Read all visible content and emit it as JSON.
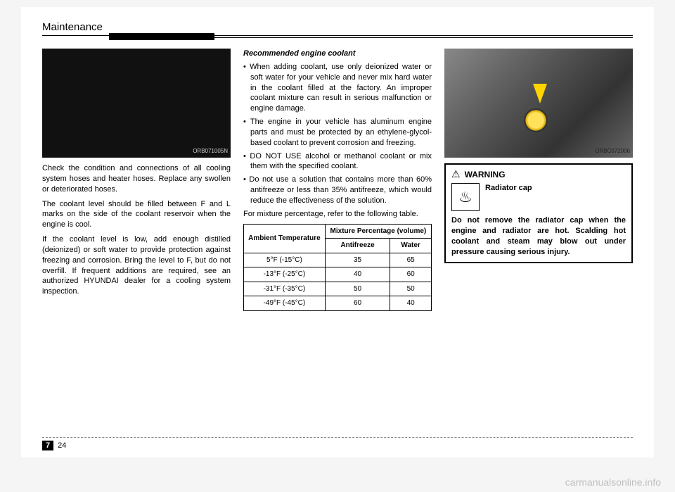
{
  "header": {
    "title": "Maintenance"
  },
  "footer": {
    "chapter": "7",
    "page": "24"
  },
  "watermark": "carmanualsonline.info",
  "col1": {
    "image_caption": "ORB071005N",
    "p1": "Check the condition and connections of all cooling system hoses and heater hoses. Replace any swollen or deteriorated hoses.",
    "p2": "The coolant level should be filled between F and L marks on the side of the coolant reservoir when the engine is cool.",
    "p3": "If the coolant level is low, add enough distilled (deionized) or soft water to provide protection against freezing and corrosion. Bring the level to F, but do not overfill. If frequent additions are required, see an authorized HYUNDAI dealer for a cooling system inspection."
  },
  "col2": {
    "subhead": "Recommended engine coolant",
    "bullets": [
      "When adding coolant, use only deionized water or soft water for your vehicle and never mix hard water in the coolant filled at the factory. An improper coolant mixture can result in serious malfunction or engine damage.",
      "The engine in your vehicle has aluminum engine parts and must be protected by an ethylene-glycol-based coolant to prevent corrosion and freezing.",
      "DO NOT USE alcohol or methanol coolant or mix them with the specified coolant.",
      "Do not use a solution that contains more than 60% antifreeze or less than 35% antifreeze, which would reduce the effectiveness of the solution."
    ],
    "p_after": "For mixture percentage, refer to the following table.",
    "table": {
      "col_amb": "Ambient Temperature",
      "col_mix": "Mixture Percentage (volume)",
      "col_af": "Antifreeze",
      "col_w": "Water",
      "rows": [
        {
          "t": "5°F (-15°C)",
          "a": "35",
          "w": "65"
        },
        {
          "t": "-13°F (-25°C)",
          "a": "40",
          "w": "60"
        },
        {
          "t": "-31°F (-35°C)",
          "a": "50",
          "w": "50"
        },
        {
          "t": "-49°F (-45°C)",
          "a": "60",
          "w": "40"
        }
      ]
    }
  },
  "col3": {
    "image_caption": "ORBC072006",
    "warn_label": "WARNING",
    "warn_title": "Radiator cap",
    "warn_body": "Do not remove the radiator cap when the engine and radiator are hot. Scalding hot coolant and steam may blow out under pressure causing serious injury."
  }
}
